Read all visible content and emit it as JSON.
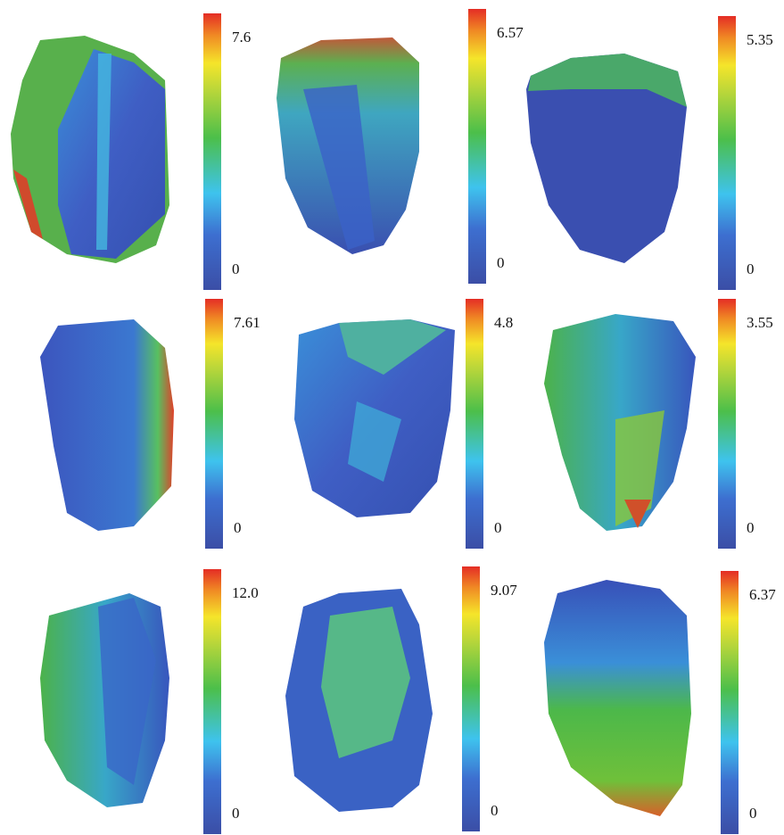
{
  "panels": [
    {
      "max": "7.6",
      "min": "0"
    },
    {
      "max": "6.57",
      "min": "0"
    },
    {
      "max": "5.35",
      "min": "0"
    },
    {
      "max": "7.61",
      "min": "0"
    },
    {
      "max": "4.8",
      "min": "0"
    },
    {
      "max": "3.55",
      "min": "0"
    },
    {
      "max": "12.0",
      "min": "0"
    },
    {
      "max": "9.07",
      "min": "0"
    },
    {
      "max": "6.37",
      "min": "0"
    }
  ]
}
